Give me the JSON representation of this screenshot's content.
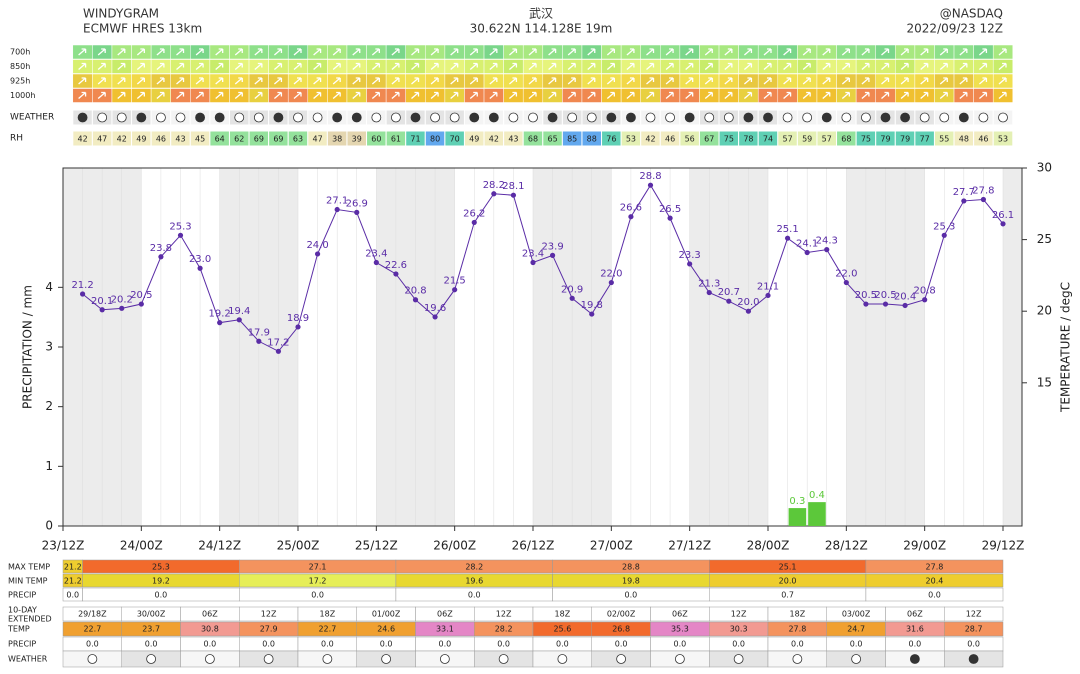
{
  "header": {
    "title": "WINDYGRAM",
    "model": "ECMWF HRES 13km",
    "place": "武汉",
    "coords": "30.622N 114.128E 19m",
    "source": "@NASDAQ",
    "run": "2022/09/23 12Z"
  },
  "levels": [
    "700h",
    "850h",
    "925h",
    "1000h"
  ],
  "weather_label": "WEATHER",
  "rh_label": "RH",
  "rh": [
    42,
    47,
    42,
    49,
    46,
    43,
    45,
    64,
    62,
    69,
    69,
    63,
    47,
    38,
    39,
    60,
    61,
    71,
    80,
    70,
    49,
    42,
    43,
    68,
    65,
    85,
    88,
    76,
    53,
    42,
    46,
    56,
    67,
    75,
    78,
    74,
    57,
    59,
    57,
    68,
    75,
    79,
    79,
    77,
    55,
    48,
    46,
    53
  ],
  "chart_data": {
    "type": "line",
    "y_label": "PRECIPITATION / mm",
    "y2_label": "TEMPERATURE / degC",
    "xticks": [
      "23/12Z",
      "24/00Z",
      "24/12Z",
      "25/00Z",
      "25/12Z",
      "26/00Z",
      "26/12Z",
      "27/00Z",
      "27/12Z",
      "28/00Z",
      "28/12Z",
      "29/00Z",
      "29/12Z"
    ],
    "ylim": [
      0,
      6
    ],
    "yticks": [
      0,
      1,
      2,
      3,
      4
    ],
    "y2lim": [
      5,
      30
    ],
    "y2ticks": [
      15,
      20,
      25,
      30
    ],
    "series": [
      {
        "type": "line",
        "axis": "y2",
        "color": "#5a2ca6",
        "values": [
          21.2,
          20.1,
          20.2,
          20.5,
          23.8,
          25.3,
          23.0,
          19.2,
          19.4,
          17.9,
          17.2,
          18.9,
          24.0,
          27.1,
          26.9,
          23.4,
          22.6,
          20.8,
          19.6,
          21.5,
          26.2,
          28.2,
          28.1,
          23.4,
          23.9,
          20.9,
          19.8,
          22.0,
          26.6,
          28.8,
          26.5,
          23.3,
          21.3,
          20.7,
          20.0,
          21.1,
          25.1,
          24.1,
          24.3,
          22.0,
          20.5,
          20.5,
          20.4,
          20.8,
          25.3,
          27.7,
          27.8,
          26.1
        ],
        "value_labels": [
          "21.2",
          "20.1",
          "20.2",
          "20.5",
          "23.8",
          "25.3",
          "23.0",
          "19.2",
          "19.4",
          "17.9",
          "17.2",
          "18.9",
          "24.0",
          "27.1",
          "26.9",
          "23.4",
          "22.6",
          "20.8",
          "19.6",
          "21.5",
          "26.2",
          "28.2",
          "28.1",
          "23.4",
          "23.9",
          "20.9",
          "19.8",
          "22.0",
          "26.6",
          "28.8",
          "26.5",
          "23.3",
          "21.3",
          "20.7",
          "20.0",
          "21.1",
          "25.1",
          "24.1",
          "24.3",
          "22.0",
          "20.5",
          "20.5",
          "20.4",
          "20.8",
          "25.3",
          "27.7",
          "27.8",
          "26.1"
        ]
      },
      {
        "type": "bar",
        "color": "#5cc83a",
        "values": [
          null,
          null,
          null,
          null,
          null,
          null,
          null,
          null,
          null,
          null,
          null,
          null,
          null,
          null,
          null,
          null,
          null,
          null,
          null,
          null,
          null,
          null,
          null,
          null,
          null,
          null,
          null,
          null,
          null,
          null,
          null,
          null,
          null,
          null,
          null,
          null,
          null,
          0.3,
          0.4,
          null,
          null,
          null,
          null,
          null,
          null,
          null,
          null,
          null
        ]
      }
    ]
  },
  "daily": {
    "max_label": "MAX TEMP",
    "min_label": "MIN TEMP",
    "precip_label": "PRECIP",
    "max": [
      "21.2",
      "25.3",
      "27.1",
      "28.2",
      "28.8",
      "25.1",
      "27.8"
    ],
    "min": [
      "21.2",
      "19.2",
      "17.2",
      "19.6",
      "19.8",
      "20.0",
      "20.4"
    ],
    "precip": [
      "0.0",
      "0.0",
      "0.0",
      "0.0",
      "0.0",
      "0.7",
      "0.0"
    ]
  },
  "extended": {
    "label1": "10-DAY",
    "label2": "EXTENDED",
    "temp_label": "TEMP",
    "precip_label": "PRECIP",
    "weather_label": "WEATHER",
    "times": [
      "29/18Z",
      "30/00Z",
      "06Z",
      "12Z",
      "18Z",
      "01/00Z",
      "06Z",
      "12Z",
      "18Z",
      "02/00Z",
      "06Z",
      "12Z",
      "18Z",
      "03/00Z",
      "06Z",
      "12Z"
    ],
    "temps": [
      "22.7",
      "23.7",
      "30.8",
      "27.9",
      "22.7",
      "24.6",
      "33.1",
      "28.2",
      "25.6",
      "26.8",
      "35.3",
      "30.3",
      "27.8",
      "24.7",
      "31.6",
      "28.7"
    ],
    "precip": [
      "0.0",
      "0.0",
      "0.0",
      "0.0",
      "0.0",
      "0.0",
      "0.0",
      "0.0",
      "0.0",
      "0.0",
      "0.0",
      "0.0",
      "0.0",
      "0.0",
      "0.0",
      "0.0"
    ]
  }
}
